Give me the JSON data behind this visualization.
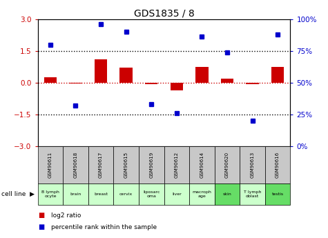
{
  "title": "GDS1835 / 8",
  "samples": [
    "GSM90611",
    "GSM90618",
    "GSM90617",
    "GSM90615",
    "GSM90619",
    "GSM90612",
    "GSM90614",
    "GSM90620",
    "GSM90613",
    "GSM90616"
  ],
  "cell_lines": [
    "B lymph\nocyte",
    "brain",
    "breast",
    "cervix",
    "liposarc\noma",
    "liver",
    "macroph\nage",
    "skin",
    "T lymph\noblast",
    "testis"
  ],
  "cell_colors": [
    "#ccffcc",
    "#ccffcc",
    "#ccffcc",
    "#ccffcc",
    "#ccffcc",
    "#ccffcc",
    "#ccffcc",
    "#66dd66",
    "#ccffcc",
    "#66dd66"
  ],
  "log2_ratio": [
    0.25,
    -0.05,
    1.1,
    0.7,
    -0.08,
    -0.35,
    0.75,
    0.18,
    -0.07,
    0.75
  ],
  "percentile_rank": [
    80,
    32,
    96,
    90,
    33,
    26,
    86,
    74,
    20,
    88
  ],
  "ylim_left": [
    -3,
    3
  ],
  "ylim_right": [
    0,
    100
  ],
  "yticks_left": [
    -3,
    -1.5,
    0,
    1.5,
    3
  ],
  "yticks_right": [
    0,
    25,
    50,
    75,
    100
  ],
  "hlines": [
    1.5,
    -1.5,
    0
  ],
  "bar_color": "#cc0000",
  "dot_color": "#0000cc",
  "hline_color": "#000000",
  "zero_line_color": "#cc0000",
  "background_color": "#ffffff",
  "left_axis_color": "#cc0000",
  "right_axis_color": "#0000cc",
  "sample_bg": "#c8c8c8",
  "bar_width": 0.5
}
